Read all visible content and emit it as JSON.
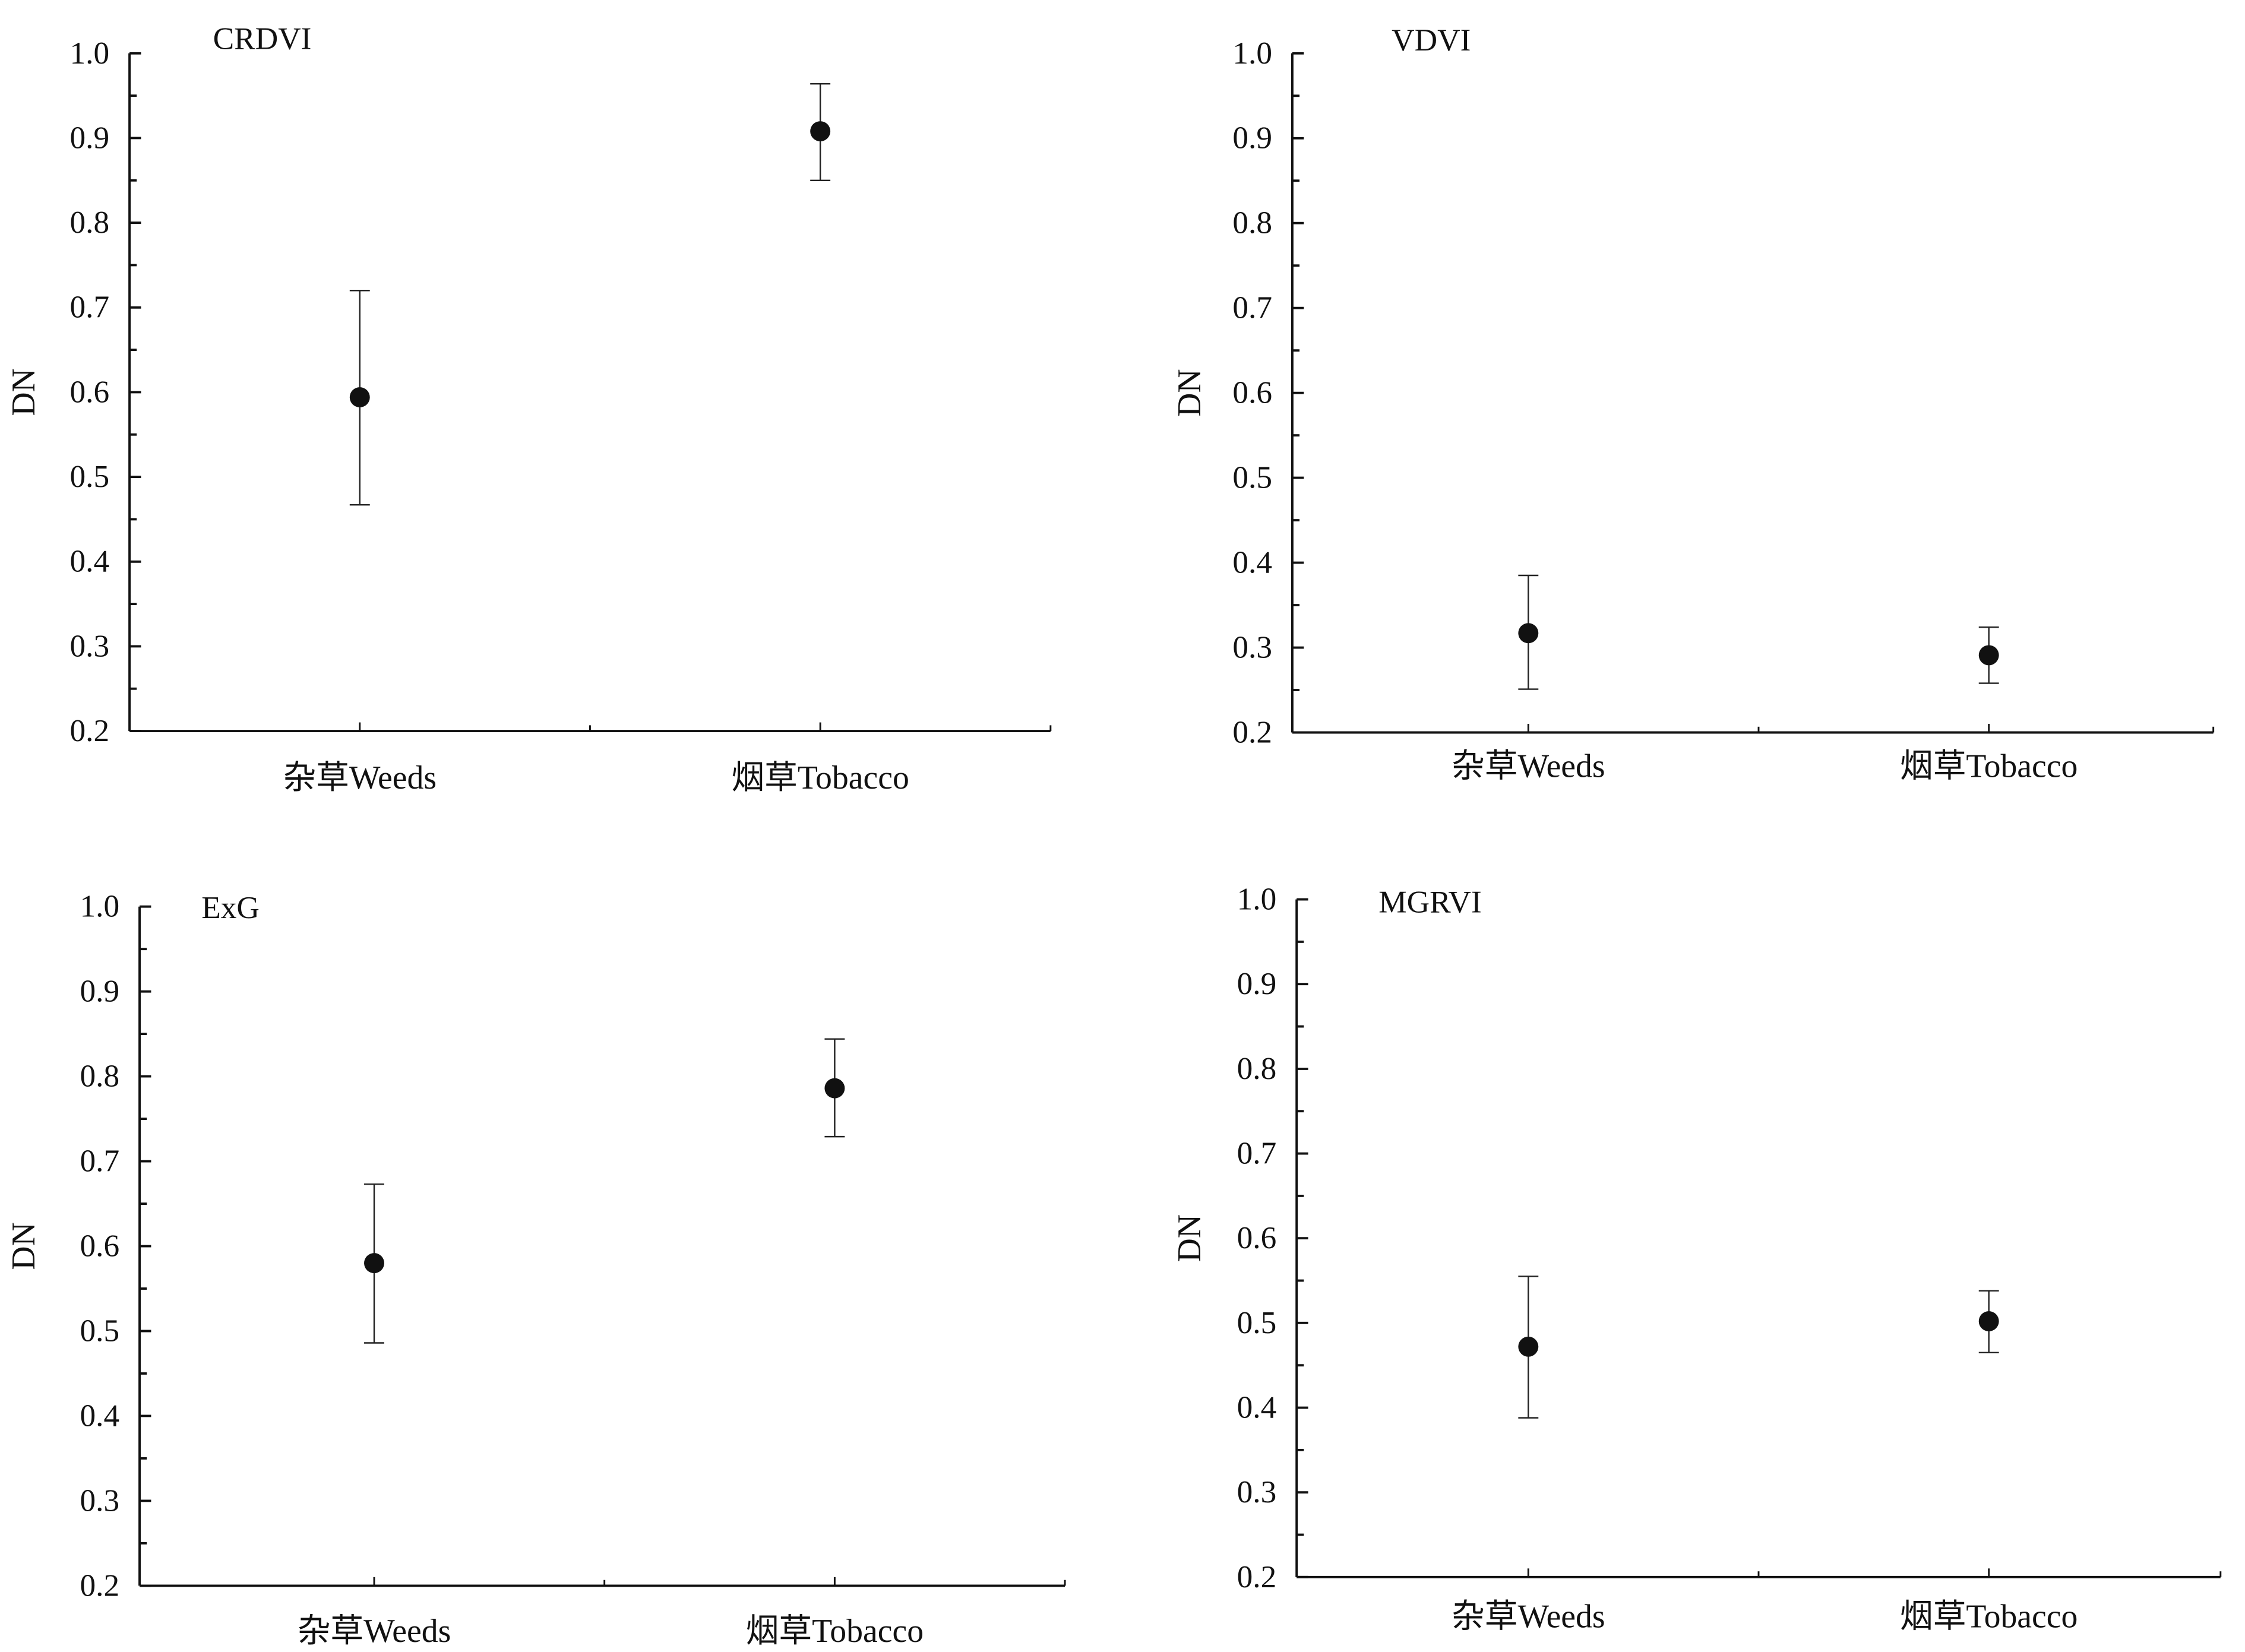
{
  "chart_data": [
    {
      "type": "scatter",
      "title": "CRDVI",
      "ylabel": "DN",
      "xlabel": "",
      "ylim": [
        0.2,
        1.0
      ],
      "yticks": [
        "0.2",
        "0.3",
        "0.4",
        "0.5",
        "0.6",
        "0.7",
        "0.8",
        "0.9",
        "1.0"
      ],
      "categories": [
        "杂草Weeds",
        "烟草Tobacco"
      ],
      "values": [
        0.594,
        0.908
      ],
      "error_upper": [
        0.72,
        0.964
      ],
      "error_lower": [
        0.467,
        0.85
      ]
    },
    {
      "type": "scatter",
      "title": "VDVI",
      "ylabel": "DN",
      "xlabel": "",
      "ylim": [
        0.2,
        1.0
      ],
      "yticks": [
        "0.2",
        "0.3",
        "0.4",
        "0.5",
        "0.6",
        "0.7",
        "0.8",
        "0.9",
        "1.0"
      ],
      "categories": [
        "杂草Weeds",
        "烟草Tobacco"
      ],
      "values": [
        0.317,
        0.291
      ],
      "error_upper": [
        0.385,
        0.324
      ],
      "error_lower": [
        0.251,
        0.258
      ]
    },
    {
      "type": "scatter",
      "title": "ExG",
      "ylabel": "DN",
      "xlabel": "",
      "ylim": [
        0.2,
        1.0
      ],
      "yticks": [
        "0.2",
        "0.3",
        "0.4",
        "0.5",
        "0.6",
        "0.7",
        "0.8",
        "0.9",
        "1.0"
      ],
      "categories": [
        "杂草Weeds",
        "烟草Tobacco"
      ],
      "values": [
        0.58,
        0.786
      ],
      "error_upper": [
        0.673,
        0.844
      ],
      "error_lower": [
        0.486,
        0.729
      ]
    },
    {
      "type": "scatter",
      "title": "MGRVI",
      "ylabel": "DN",
      "xlabel": "",
      "ylim": [
        0.2,
        1.0
      ],
      "yticks": [
        "0.2",
        "0.3",
        "0.4",
        "0.5",
        "0.6",
        "0.7",
        "0.8",
        "0.9",
        "1.0"
      ],
      "categories": [
        "杂草Weeds",
        "烟草Tobacco"
      ],
      "values": [
        0.472,
        0.502
      ],
      "error_upper": [
        0.555,
        0.538
      ],
      "error_lower": [
        0.388,
        0.465
      ]
    }
  ]
}
